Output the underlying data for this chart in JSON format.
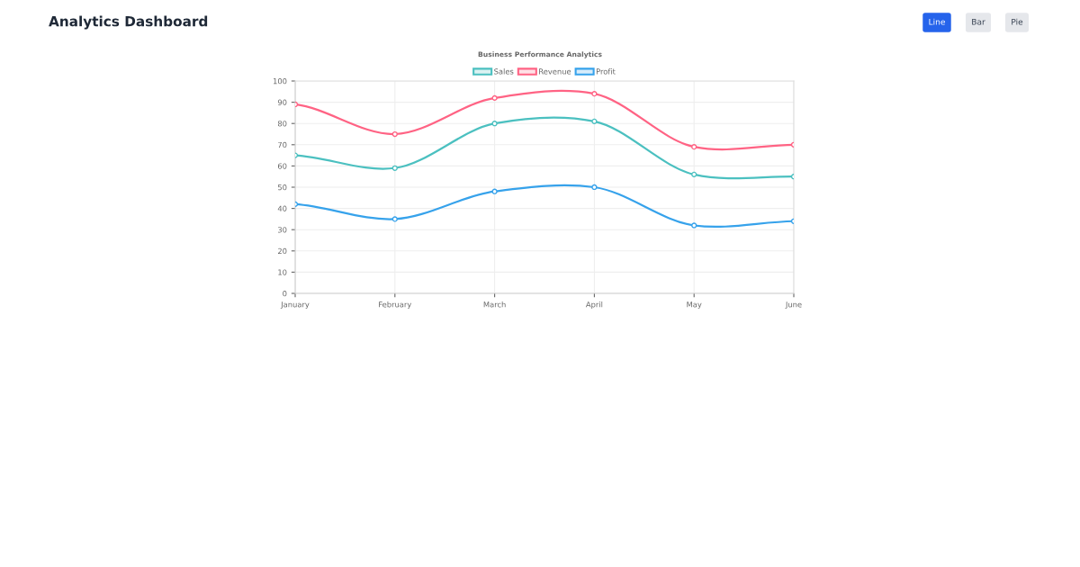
{
  "chart_data": {
    "type": "line",
    "title": "Analytics Dashboard",
    "subtitle": "Business Performance Analytics",
    "annotations": [
      "Line",
      "Bar",
      "Pie"
    ],
    "categories": [
      "January",
      "February",
      "March",
      "April",
      "May",
      "June"
    ],
    "series": [
      {
        "name": "Sales",
        "color": "#4bc0c0",
        "values": [
          65,
          59,
          80,
          81,
          56,
          55
        ]
      },
      {
        "name": "Revenue",
        "color": "#ff6384",
        "values": [
          89,
          75,
          92,
          94,
          69,
          70
        ]
      },
      {
        "name": "Profit",
        "color": "#36a2eb",
        "values": [
          42,
          35,
          48,
          50,
          32,
          34
        ]
      }
    ],
    "ylim": [
      0,
      100
    ],
    "yticks": [
      0,
      10,
      20,
      30,
      40,
      50,
      60,
      70,
      80,
      90,
      100
    ],
    "grid": true,
    "legend": "top",
    "marker": "circle",
    "line_style": "solid"
  }
}
